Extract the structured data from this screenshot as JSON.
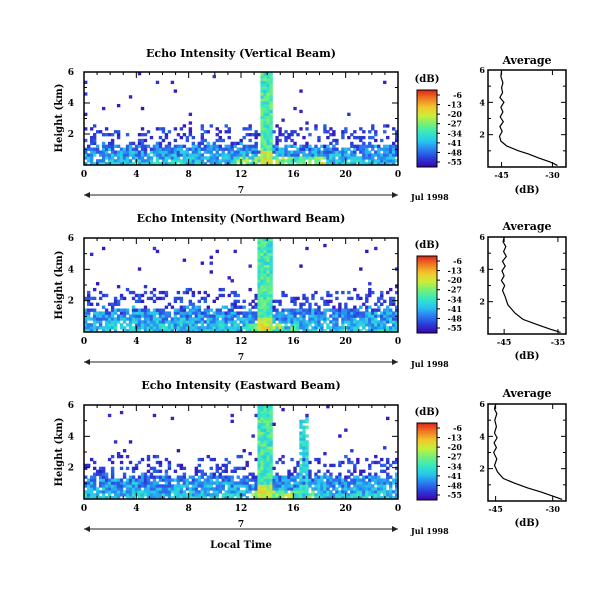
{
  "colorbar": {
    "unit_label": "(dB)",
    "tick_labels": [
      "-6",
      "-13",
      "-20",
      "-27",
      "-34",
      "-41",
      "-48",
      "-55"
    ],
    "stops": [
      "#3f00aa",
      "#2a3cd8",
      "#2a7ef0",
      "#27c6ee",
      "#35e8c0",
      "#73f07a",
      "#c7f03a",
      "#f2c72c",
      "#f07a22",
      "#e0241c"
    ]
  },
  "x_axis_common": {
    "tick_labels": [
      "0",
      "4",
      "8",
      "12",
      "16",
      "20",
      "0"
    ],
    "date_marker": "7",
    "date_label": "Jul 1998",
    "xlabel": "Local Time"
  },
  "chart_data": [
    {
      "type": "heatmap",
      "title": "Echo Intensity (Vertical Beam)",
      "ylabel": "Height (km)",
      "yticks": [
        "6",
        "4",
        "2"
      ],
      "xlim": [
        0,
        24
      ],
      "ylim": [
        0,
        6
      ],
      "x_unit": "hour (local time)",
      "y_unit": "km",
      "z_unit": "dB",
      "zlim": [
        -55,
        -6
      ],
      "features": {
        "boundary_layer_top_km": 1.3,
        "convective_column": {
          "x_start": 13.6,
          "x_end": 14.3,
          "height_km": 6
        },
        "strong_echo_near_surface": {
          "x_start": 11.5,
          "x_end": 18.5
        }
      }
    },
    {
      "type": "line",
      "title": "Average",
      "xlabel": "(dB)",
      "xticks": [
        "-45",
        "-30"
      ],
      "yticks": [
        "6",
        "4",
        "2"
      ],
      "xlim": [
        -49,
        -26
      ],
      "ylim": [
        0,
        6
      ],
      "series": [
        {
          "x": [
            -28.5,
            -30.5,
            -34,
            -37,
            -40,
            -43.5,
            -45.2,
            -45.6,
            -44.8,
            -45.5,
            -44.5,
            -45.4,
            -44.6,
            -45.2,
            -44.3,
            -45.5,
            -44.7,
            -45.0,
            -44.6,
            -45.2,
            -45.0
          ],
          "y": [
            0.1,
            0.3,
            0.55,
            0.8,
            1.0,
            1.3,
            1.6,
            1.9,
            2.2,
            2.5,
            2.8,
            3.1,
            3.4,
            3.7,
            4.0,
            4.3,
            4.6,
            4.9,
            5.2,
            5.6,
            6.0
          ]
        }
      ]
    },
    {
      "type": "heatmap",
      "title": "Echo Intensity (Northward Beam)",
      "ylabel": "Height (km)",
      "yticks": [
        "6",
        "4",
        "2"
      ],
      "xlim": [
        0,
        24
      ],
      "ylim": [
        0,
        6
      ],
      "x_unit": "hour (local time)",
      "y_unit": "km",
      "z_unit": "dB",
      "zlim": [
        -55,
        -6
      ],
      "features": {
        "boundary_layer_top_km": 1.5,
        "convective_column": {
          "x_start": 13.3,
          "x_end": 14.5,
          "height_km": 6
        },
        "strong_echo_near_surface": {
          "x_start": 12.5,
          "x_end": 16.5
        }
      }
    },
    {
      "type": "line",
      "title": "Average",
      "xlabel": "(dB)",
      "xticks": [
        "-45",
        "-35"
      ],
      "yticks": [
        "6",
        "4",
        "2"
      ],
      "xlim": [
        -48,
        -33.5
      ],
      "ylim": [
        0,
        6
      ],
      "series": [
        {
          "x": [
            -34.5,
            -36.5,
            -39,
            -41.5,
            -43,
            -44.3,
            -44.8,
            -45.3,
            -44.9,
            -45.5,
            -45.0,
            -45.4,
            -44.8,
            -45.3,
            -44.6,
            -45.1,
            -44.7,
            -45.2,
            -45.0
          ],
          "y": [
            0.1,
            0.3,
            0.6,
            0.9,
            1.3,
            1.8,
            2.3,
            2.7,
            3.0,
            3.3,
            3.6,
            3.9,
            4.2,
            4.5,
            4.8,
            5.1,
            5.4,
            5.7,
            6.0
          ]
        }
      ]
    },
    {
      "type": "heatmap",
      "title": "Echo Intensity (Eastward Beam)",
      "ylabel": "Height (km)",
      "yticks": [
        "6",
        "4",
        "2"
      ],
      "xlim": [
        0,
        24
      ],
      "ylim": [
        0,
        6
      ],
      "x_unit": "hour (local time)",
      "y_unit": "km",
      "z_unit": "dB",
      "zlim": [
        -55,
        -6
      ],
      "features": {
        "boundary_layer_top_km": 1.5,
        "convective_column": {
          "x_start": 13.2,
          "x_end": 14.5,
          "height_km": 6
        },
        "secondary_column": {
          "x_start": 16.4,
          "x_end": 17.2,
          "height_km": 5.2
        },
        "strong_echo_near_surface": {
          "x_start": 12.5,
          "x_end": 17.5
        }
      }
    },
    {
      "type": "line",
      "title": "Average",
      "xlabel": "(dB)",
      "xticks": [
        "-45",
        "-30"
      ],
      "yticks": [
        "6",
        "4",
        "2"
      ],
      "xlim": [
        -47,
        -26.5
      ],
      "ylim": [
        0,
        6
      ],
      "series": [
        {
          "x": [
            -27.5,
            -30,
            -33,
            -36.5,
            -40,
            -43,
            -44.5,
            -45.3,
            -44.7,
            -45.5,
            -44.8,
            -45.4,
            -44.6,
            -45.3,
            -44.8,
            -45.2,
            -44.7,
            -45.3,
            -45.0
          ],
          "y": [
            0.1,
            0.3,
            0.55,
            0.8,
            1.1,
            1.4,
            1.8,
            2.2,
            2.6,
            3.0,
            3.3,
            3.6,
            3.9,
            4.2,
            4.6,
            5.0,
            5.4,
            5.7,
            6.0
          ]
        }
      ]
    }
  ]
}
